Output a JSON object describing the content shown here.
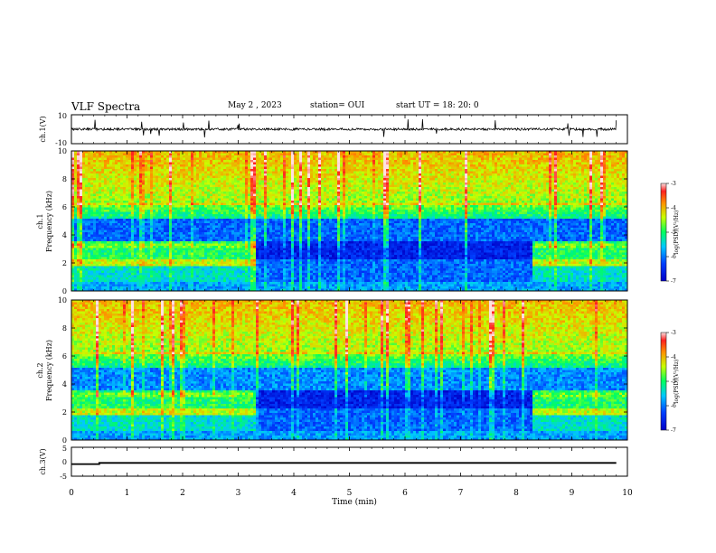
{
  "header": {
    "title": "VLF Spectra",
    "date": "May 2 , 2023",
    "station": "station= OUI",
    "start_ut": "start UT = 18: 20: 0"
  },
  "chart_data": {
    "type": "heatmap",
    "x": {
      "label": "Time (min)",
      "range": [
        0,
        10
      ],
      "ticks": [
        "0",
        "1",
        "2",
        "3",
        "4",
        "5",
        "6",
        "7",
        "8",
        "9",
        "10"
      ]
    },
    "panels": [
      {
        "id": "ch1-waveform",
        "type": "line",
        "ylabel": "ch.1(V)",
        "ylim": [
          -10,
          10
        ],
        "ytick_labels": [
          "10",
          "-10"
        ],
        "baseline": 0
      },
      {
        "id": "ch1-spectrogram",
        "type": "heatmap",
        "ylabel_1": "ch.1",
        "ylabel_2": "Frequency (kHz)",
        "ylim": [
          0,
          10
        ],
        "ytick_labels": [
          "0",
          "2",
          "4",
          "6",
          "8",
          "10"
        ],
        "colorbar": {
          "label": "log(PSD)(V²/Hz)",
          "range": [
            -7,
            -3
          ],
          "tick_labels": [
            "-3",
            "-4",
            "-5",
            "-6",
            "-7"
          ]
        },
        "quiet_interval_min": [
          3.25,
          8.15
        ]
      },
      {
        "id": "ch2-spectrogram",
        "type": "heatmap",
        "ylabel_1": "ch.2",
        "ylabel_2": "Frequency (kHz)",
        "ylim": [
          0,
          10
        ],
        "ytick_labels": [
          "0",
          "2",
          "4",
          "6",
          "8",
          "10"
        ],
        "colorbar": {
          "label": "log(PSD)(V²/Hz)",
          "range": [
            -7,
            -3
          ],
          "tick_labels": [
            "-3",
            "-4",
            "-5",
            "-6",
            "-7"
          ]
        },
        "quiet_interval_min": [
          3.25,
          8.15
        ]
      },
      {
        "id": "ch3-level",
        "type": "line",
        "ylabel": "ch.3(V)",
        "ylim": [
          -5,
          5
        ],
        "ytick_labels": [
          "5",
          "0",
          "-5"
        ],
        "levels": [
          {
            "x": [
              0.0,
              0.5
            ],
            "y": -0.8
          },
          {
            "x": [
              0.5,
              9.8
            ],
            "y": -0.4
          }
        ]
      }
    ]
  }
}
